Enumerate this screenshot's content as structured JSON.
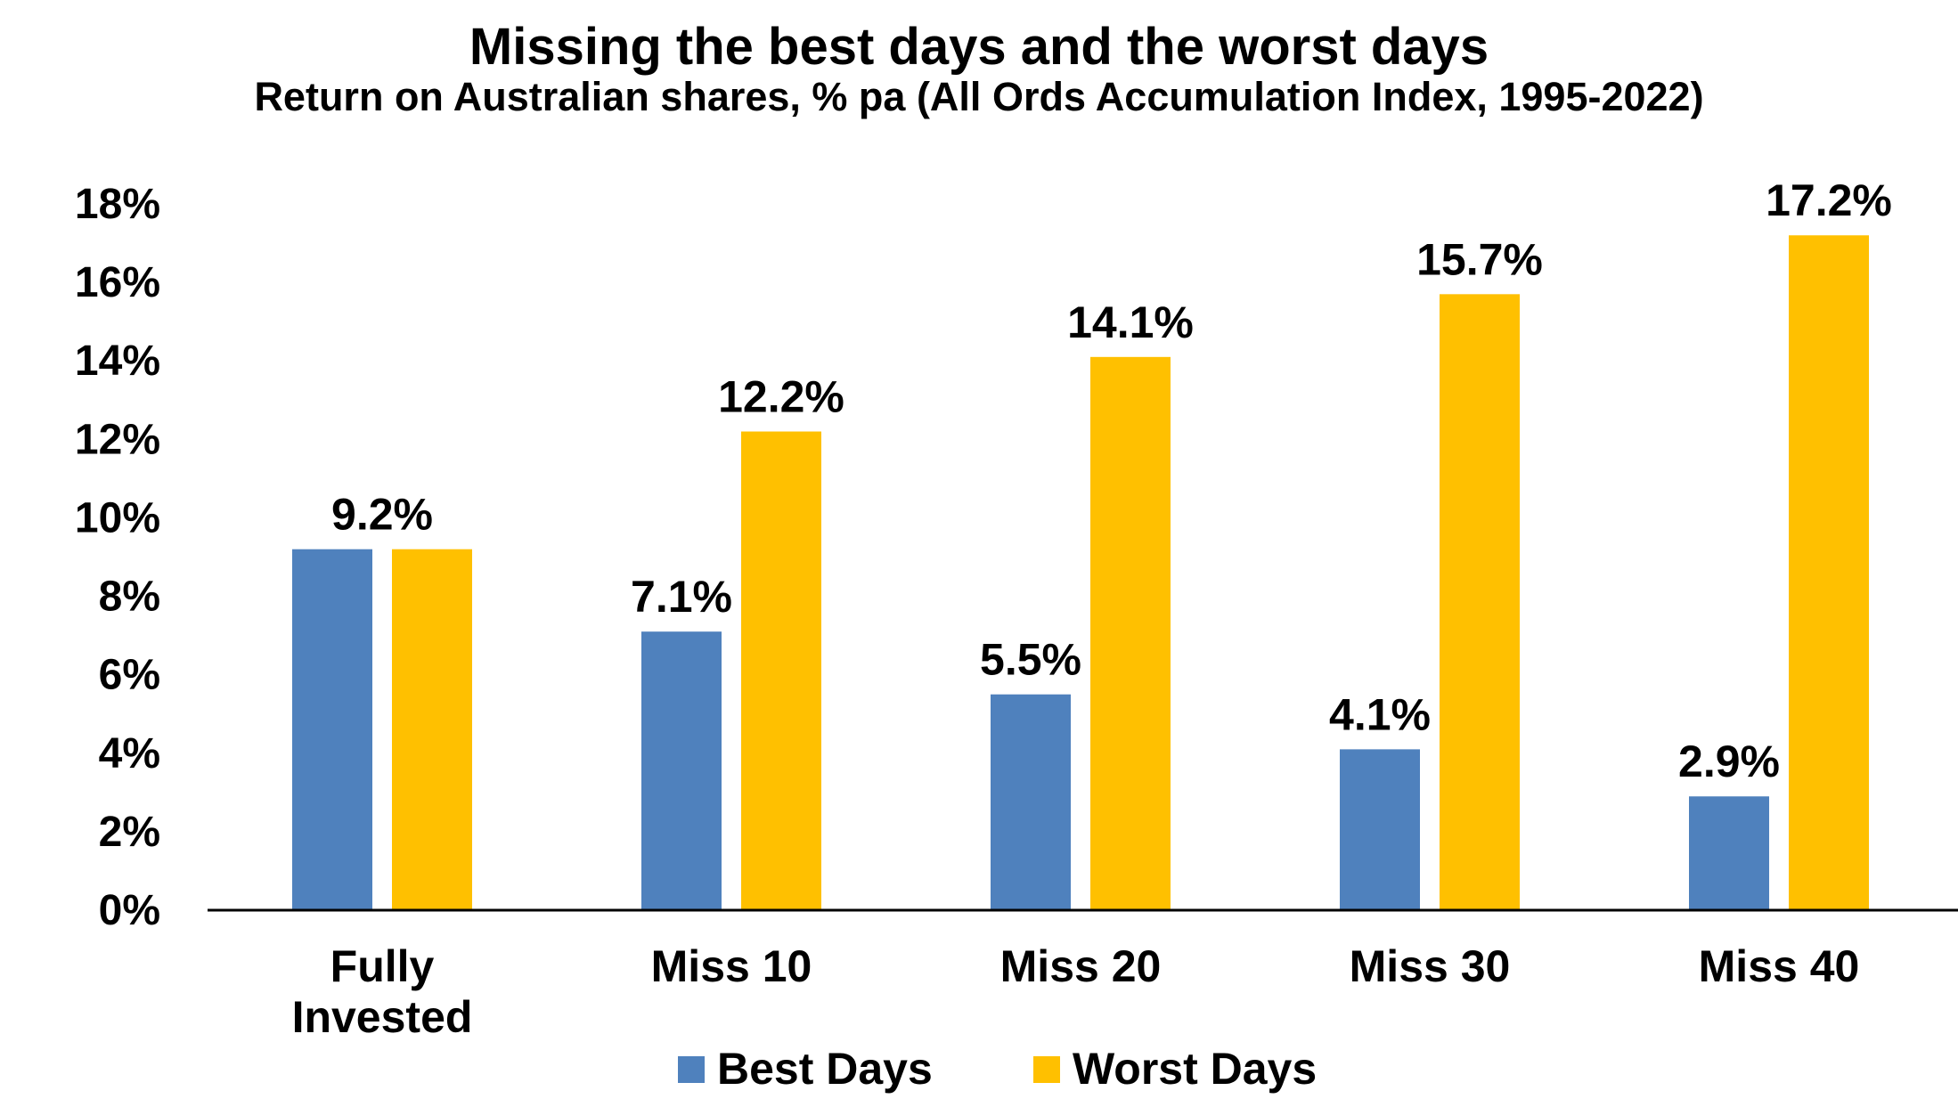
{
  "chart_data": {
    "type": "bar",
    "title": "Missing the best days and the worst days",
    "subtitle": "Return on Australian shares, % pa (All Ords Accumulation Index, 1995-2022)",
    "categories": [
      [
        "Fully",
        "Invested"
      ],
      [
        "Miss 10"
      ],
      [
        "Miss 20"
      ],
      [
        "Miss 30"
      ],
      [
        "Miss 40"
      ]
    ],
    "series": [
      {
        "name": "Best Days",
        "color": "#4F81BD",
        "values": [
          9.2,
          7.1,
          5.5,
          4.1,
          2.9
        ],
        "labels": [
          "",
          "7.1%",
          "5.5%",
          "4.1%",
          "2.9%"
        ]
      },
      {
        "name": "Worst Days",
        "color": "#FFC000",
        "values": [
          9.2,
          12.2,
          14.1,
          15.7,
          17.2
        ],
        "labels": [
          "",
          "12.2%",
          "14.1%",
          "15.7%",
          "17.2%"
        ]
      }
    ],
    "group_labels": [
      "9.2%",
      "",
      "",
      "",
      ""
    ],
    "y_ticks": [
      "0%",
      "2%",
      "4%",
      "6%",
      "8%",
      "10%",
      "12%",
      "14%",
      "16%",
      "18%"
    ],
    "ylim": [
      0,
      18
    ],
    "grid": false,
    "legend": "bottom"
  }
}
